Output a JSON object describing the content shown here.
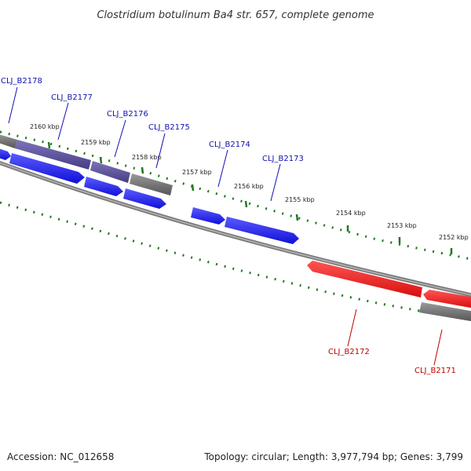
{
  "title": "Clostridium botulinum Ba4 str. 657, complete genome",
  "footer": {
    "accession": "Accession: NC_012658",
    "summary": "Topology: circular; Length: 3,977,794 bp; Genes: 3,799"
  },
  "colors": {
    "forward_gene": "#1414e6",
    "reverse_gene": "#e61414",
    "forward_label": "#1010b0",
    "reverse_label": "#c00000",
    "gray_feature": "#6a6a6a",
    "violet_feature": "#5a4f96",
    "backbone": "#8a8a8a",
    "tick": "#1f7a1f"
  },
  "scale": {
    "ticks": [
      {
        "label": "2160 kbp"
      },
      {
        "label": "2159 kbp"
      },
      {
        "label": "2158 kbp"
      },
      {
        "label": "2157 kbp"
      },
      {
        "label": "2156 kbp"
      },
      {
        "label": "2155 kbp"
      },
      {
        "label": "2154 kbp"
      },
      {
        "label": "2153 kbp"
      },
      {
        "label": "2152 kbp"
      }
    ]
  },
  "gene_labels": {
    "b2178": "CLJ_B2178",
    "b2177": "CLJ_B2177",
    "b2176": "CLJ_B2176",
    "b2175": "CLJ_B2175",
    "b2174": "CLJ_B2174",
    "b2173": "CLJ_B2173",
    "b2172": "CLJ_B2172",
    "b2171": "CLJ_B2171"
  }
}
